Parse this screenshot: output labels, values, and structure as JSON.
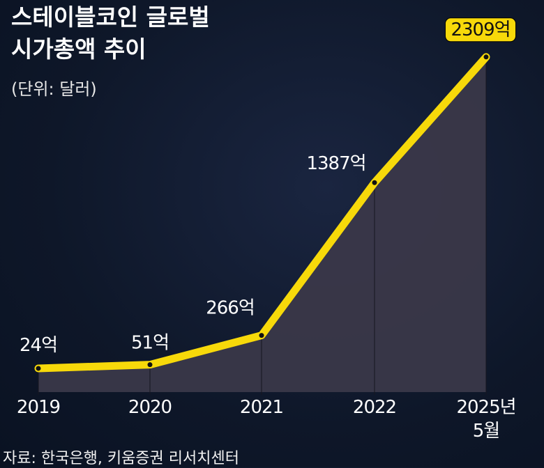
{
  "chart_data": {
    "type": "line",
    "title": [
      "스테이블코인 글로벌",
      "시가총액 추이"
    ],
    "subtitle": "(단위: 달러)",
    "categories": [
      "2019",
      "2020",
      "2021",
      "2022",
      "2025년 5월"
    ],
    "values": [
      24,
      51,
      266,
      1387,
      2309
    ],
    "value_labels": [
      "24억",
      "51억",
      "266억",
      "1387억",
      "2309억"
    ],
    "color": "#f7d90a",
    "ylim": [
      -150,
      2400
    ],
    "source": "자료: 한국은행, 키움증권 리서치센터"
  }
}
